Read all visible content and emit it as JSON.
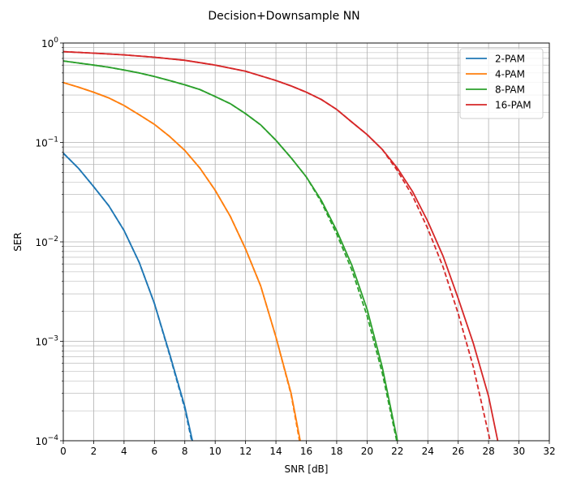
{
  "chart_data": {
    "type": "line",
    "title": "Decision+Downsample NN",
    "xlabel": "SNR [dB]",
    "ylabel": "SER",
    "xlim": [
      0,
      32
    ],
    "ylim": [
      0.0001,
      1
    ],
    "yscale": "log",
    "grid": true,
    "legend_position": "top-right",
    "x_ticks": [
      0,
      2,
      4,
      6,
      8,
      10,
      12,
      14,
      16,
      18,
      20,
      22,
      24,
      26,
      28,
      30,
      32
    ],
    "x_tick_labels": [
      "0",
      "2",
      "4",
      "6",
      "8",
      "10",
      "12",
      "14",
      "16",
      "18",
      "20",
      "22",
      "24",
      "26",
      "28",
      "30",
      "32"
    ],
    "y_ticks": [
      0.0001,
      0.001,
      0.01,
      0.1,
      1
    ],
    "y_tick_labels": [
      {
        "base": "10",
        "exp": "−4"
      },
      {
        "base": "10",
        "exp": "−3"
      },
      {
        "base": "10",
        "exp": "−2"
      },
      {
        "base": "10",
        "exp": "−1"
      },
      {
        "base": "10",
        "exp": "0"
      }
    ],
    "series": [
      {
        "name": "2-PAM",
        "color": "#1f77b4",
        "x": [
          0,
          1,
          2,
          3,
          4,
          5,
          6,
          7,
          8,
          8.5
        ],
        "y": [
          0.078,
          0.055,
          0.036,
          0.023,
          0.013,
          0.0062,
          0.0024,
          0.00075,
          0.00022,
          0.0001
        ],
        "dashed_x": [
          0,
          1,
          2,
          3,
          4,
          5,
          6,
          7,
          8,
          8.45
        ],
        "dashed_y": [
          0.078,
          0.055,
          0.036,
          0.023,
          0.013,
          0.0062,
          0.0024,
          0.00073,
          0.00021,
          0.0001
        ]
      },
      {
        "name": "4-PAM",
        "color": "#ff7f0e",
        "x": [
          0,
          1,
          2,
          3,
          4,
          5,
          6,
          7,
          8,
          9,
          10,
          11,
          12,
          13,
          14,
          15,
          15.6
        ],
        "y": [
          0.4,
          0.36,
          0.32,
          0.28,
          0.235,
          0.19,
          0.152,
          0.115,
          0.083,
          0.055,
          0.033,
          0.018,
          0.0085,
          0.0036,
          0.0011,
          0.0003,
          0.0001
        ],
        "dashed_x": [
          0,
          1,
          2,
          3,
          4,
          5,
          6,
          7,
          8,
          9,
          10,
          11,
          12,
          13,
          14,
          15,
          15.55
        ],
        "dashed_y": [
          0.4,
          0.36,
          0.32,
          0.28,
          0.235,
          0.19,
          0.152,
          0.115,
          0.083,
          0.055,
          0.033,
          0.018,
          0.0085,
          0.0036,
          0.0011,
          0.00029,
          0.0001
        ]
      },
      {
        "name": "8-PAM",
        "color": "#2ca02c",
        "x": [
          0,
          1,
          2,
          3,
          4,
          5,
          6,
          7,
          8,
          9,
          10,
          11,
          12,
          13,
          14,
          15,
          16,
          17,
          18,
          19,
          20,
          21,
          22
        ],
        "y": [
          0.66,
          0.63,
          0.6,
          0.57,
          0.535,
          0.5,
          0.46,
          0.42,
          0.38,
          0.34,
          0.29,
          0.245,
          0.195,
          0.15,
          0.105,
          0.07,
          0.045,
          0.026,
          0.013,
          0.0058,
          0.0021,
          0.00055,
          0.0001
        ],
        "dashed_x": [
          0,
          1,
          2,
          3,
          4,
          5,
          6,
          7,
          8,
          9,
          10,
          11,
          12,
          13,
          14,
          15,
          16,
          17,
          18,
          19,
          20,
          21,
          21.95
        ],
        "dashed_y": [
          0.66,
          0.63,
          0.6,
          0.57,
          0.535,
          0.5,
          0.46,
          0.42,
          0.38,
          0.34,
          0.29,
          0.245,
          0.195,
          0.15,
          0.105,
          0.07,
          0.045,
          0.025,
          0.012,
          0.0052,
          0.0018,
          0.00048,
          0.0001
        ]
      },
      {
        "name": "16-PAM",
        "color": "#d62728",
        "x": [
          0,
          2,
          4,
          6,
          8,
          10,
          12,
          14,
          15,
          16,
          17,
          18,
          19,
          20,
          21,
          22,
          23,
          24,
          25,
          26,
          27,
          28,
          28.6
        ],
        "y": [
          0.82,
          0.79,
          0.76,
          0.72,
          0.67,
          0.6,
          0.52,
          0.42,
          0.37,
          0.32,
          0.27,
          0.215,
          0.16,
          0.12,
          0.085,
          0.055,
          0.032,
          0.016,
          0.0072,
          0.0027,
          0.00095,
          0.00028,
          0.0001
        ],
        "dashed_x": [
          0,
          2,
          4,
          6,
          8,
          10,
          12,
          14,
          15,
          16,
          17,
          18,
          19,
          20,
          21,
          22,
          23,
          24,
          25,
          26,
          27,
          28.1
        ],
        "dashed_y": [
          0.82,
          0.79,
          0.76,
          0.72,
          0.67,
          0.6,
          0.52,
          0.42,
          0.37,
          0.32,
          0.27,
          0.215,
          0.16,
          0.12,
          0.085,
          0.052,
          0.029,
          0.0135,
          0.0056,
          0.0019,
          0.00055,
          0.0001
        ]
      }
    ]
  }
}
